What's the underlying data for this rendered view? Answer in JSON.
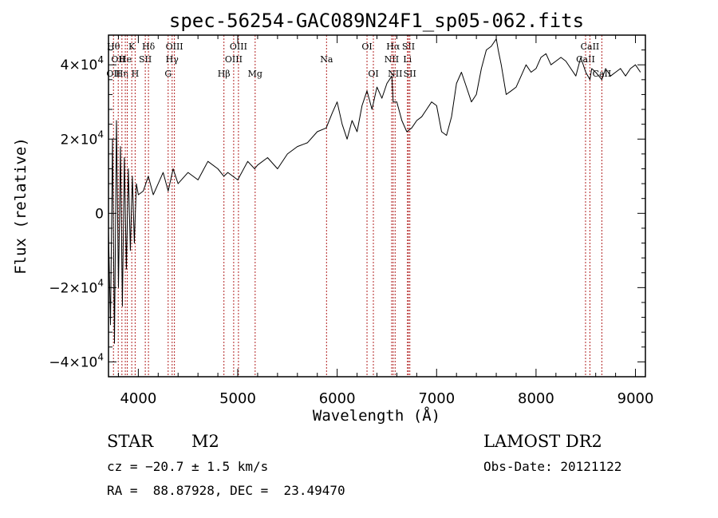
{
  "chart_data": {
    "type": "line",
    "title": "spec-56254-GAC089N24F1_sp05-062.fits",
    "xlabel": "Wavelength (Å)",
    "ylabel": "Flux (relative)",
    "xlim": [
      3700,
      9100
    ],
    "ylim": [
      -44000,
      48000
    ],
    "x_ticks": [
      4000,
      5000,
      6000,
      7000,
      8000,
      9000
    ],
    "x_tick_labels": [
      "4000",
      "5000",
      "6000",
      "7000",
      "8000",
      "9000"
    ],
    "y_ticks": [
      -40000,
      -20000,
      0,
      20000,
      40000
    ],
    "y_tick_labels": [
      {
        "mantissa": "−4×10",
        "exp": "4"
      },
      {
        "mantissa": "−2×10",
        "exp": "4"
      },
      {
        "mantissa": "0",
        "exp": ""
      },
      {
        "mantissa": "2×10",
        "exp": "4"
      },
      {
        "mantissa": "4×10",
        "exp": "4"
      }
    ],
    "line_color": "#000000",
    "marker_line_color": "#b22222",
    "series": [
      {
        "x": [
          3700,
          3720,
          3740,
          3760,
          3780,
          3800,
          3820,
          3840,
          3860,
          3880,
          3900,
          3920,
          3940,
          3960,
          3980,
          4000,
          4050,
          4100,
          4150,
          4200,
          4250,
          4300,
          4350,
          4400,
          4500,
          4600,
          4700,
          4800,
          4860,
          4900,
          5000,
          5100,
          5170,
          5200,
          5300,
          5400,
          5500,
          5600,
          5700,
          5800,
          5890,
          5950,
          6000,
          6050,
          6100,
          6150,
          6200,
          6250,
          6300,
          6350,
          6400,
          6450,
          6500,
          6550,
          6563,
          6600,
          6650,
          6700,
          6750,
          6800,
          6850,
          6900,
          6950,
          7000,
          7050,
          7100,
          7150,
          7200,
          7250,
          7300,
          7350,
          7400,
          7450,
          7500,
          7550,
          7600,
          7620,
          7650,
          7700,
          7750,
          7800,
          7850,
          7900,
          7950,
          8000,
          8050,
          8100,
          8150,
          8200,
          8250,
          8300,
          8350,
          8400,
          8450,
          8500,
          8542,
          8560,
          8600,
          8662,
          8700,
          8750,
          8800,
          8850,
          8900,
          8950,
          9000,
          9050
        ],
        "y": [
          -5000,
          -30000,
          20000,
          -35000,
          25000,
          -20000,
          18000,
          -25000,
          15000,
          -15000,
          12000,
          -10000,
          10000,
          -8000,
          8000,
          5000,
          6000,
          10000,
          5000,
          8000,
          11000,
          6000,
          12000,
          8000,
          11000,
          9000,
          14000,
          12000,
          10000,
          11000,
          9000,
          14000,
          12000,
          13000,
          15000,
          12000,
          16000,
          18000,
          19000,
          22000,
          23000,
          27000,
          30000,
          24000,
          20000,
          25000,
          22000,
          29000,
          33000,
          28000,
          34000,
          31000,
          35000,
          37000,
          30000,
          30000,
          25000,
          22000,
          23000,
          25000,
          26000,
          28000,
          30000,
          29000,
          22000,
          21000,
          26000,
          35000,
          38000,
          34000,
          30000,
          32000,
          39000,
          44000,
          45000,
          47000,
          44000,
          40000,
          32000,
          33000,
          34000,
          37000,
          40000,
          38000,
          39000,
          42000,
          43000,
          40000,
          41000,
          42000,
          41000,
          39000,
          37000,
          42000,
          38000,
          36000,
          39000,
          38000,
          36000,
          39000,
          37000,
          38000,
          39000,
          37000,
          39000,
          40000,
          38000
        ]
      }
    ],
    "line_markers": [
      {
        "wave": 3750,
        "labels": [
          {
            "t": "Hθ",
            "row": 0
          },
          {
            "t": "OII",
            "row": 2
          }
        ]
      },
      {
        "wave": 3798,
        "labels": [
          {
            "t": "OII",
            "row": 1
          }
        ]
      },
      {
        "wave": 3835,
        "labels": [
          {
            "t": "Hη",
            "row": 2
          }
        ]
      },
      {
        "wave": 3869,
        "labels": [
          {
            "t": "He",
            "row": 1
          }
        ]
      },
      {
        "wave": 3889,
        "labels": [
          {
            "t": "",
            "row": 0
          }
        ]
      },
      {
        "wave": 3934,
        "labels": [
          {
            "t": "K",
            "row": 0
          }
        ]
      },
      {
        "wave": 3968,
        "labels": [
          {
            "t": "H",
            "row": 2
          }
        ]
      },
      {
        "wave": 4070,
        "labels": [
          {
            "t": "SII",
            "row": 1
          }
        ]
      },
      {
        "wave": 4102,
        "labels": [
          {
            "t": "Hδ",
            "row": 0
          }
        ]
      },
      {
        "wave": 4300,
        "labels": [
          {
            "t": "G",
            "row": 2
          }
        ]
      },
      {
        "wave": 4340,
        "labels": [
          {
            "t": "Hγ",
            "row": 1
          }
        ]
      },
      {
        "wave": 4363,
        "labels": [
          {
            "t": "OIII",
            "row": 0
          }
        ]
      },
      {
        "wave": 4861,
        "labels": [
          {
            "t": "Hβ",
            "row": 2
          }
        ]
      },
      {
        "wave": 4959,
        "labels": [
          {
            "t": "OIII",
            "row": 1
          }
        ]
      },
      {
        "wave": 5007,
        "labels": [
          {
            "t": "OIII",
            "row": 0
          }
        ]
      },
      {
        "wave": 5175,
        "labels": [
          {
            "t": "Mg",
            "row": 2
          }
        ]
      },
      {
        "wave": 5893,
        "labels": [
          {
            "t": "Na",
            "row": 1
          }
        ]
      },
      {
        "wave": 6300,
        "labels": [
          {
            "t": "OI",
            "row": 0
          }
        ]
      },
      {
        "wave": 6364,
        "labels": [
          {
            "t": "OI",
            "row": 2
          }
        ]
      },
      {
        "wave": 6548,
        "labels": [
          {
            "t": "NII",
            "row": 1
          }
        ]
      },
      {
        "wave": 6563,
        "labels": [
          {
            "t": "Hα",
            "row": 0
          }
        ]
      },
      {
        "wave": 6583,
        "labels": [
          {
            "t": "NII",
            "row": 2
          }
        ]
      },
      {
        "wave": 6707,
        "labels": [
          {
            "t": "Li",
            "row": 1
          }
        ]
      },
      {
        "wave": 6717,
        "labels": [
          {
            "t": "SII",
            "row": 0
          }
        ]
      },
      {
        "wave": 6731,
        "labels": [
          {
            "t": "SII",
            "row": 2
          }
        ]
      },
      {
        "wave": 8498,
        "labels": [
          {
            "t": "CaII",
            "row": 1
          }
        ]
      },
      {
        "wave": 8542,
        "labels": [
          {
            "t": "CaII",
            "row": 0
          }
        ]
      },
      {
        "wave": 8662,
        "labels": [
          {
            "t": "CaII",
            "row": 2
          }
        ]
      }
    ]
  },
  "info": {
    "object_class": "STAR",
    "subclass": "M2",
    "survey": "LAMOST DR2",
    "redshift": "cz = −20.7 ± 1.5 km/s",
    "obs_date": "Obs-Date: 20121122",
    "coords": "RA =  88.87928, DEC =  23.49470"
  }
}
